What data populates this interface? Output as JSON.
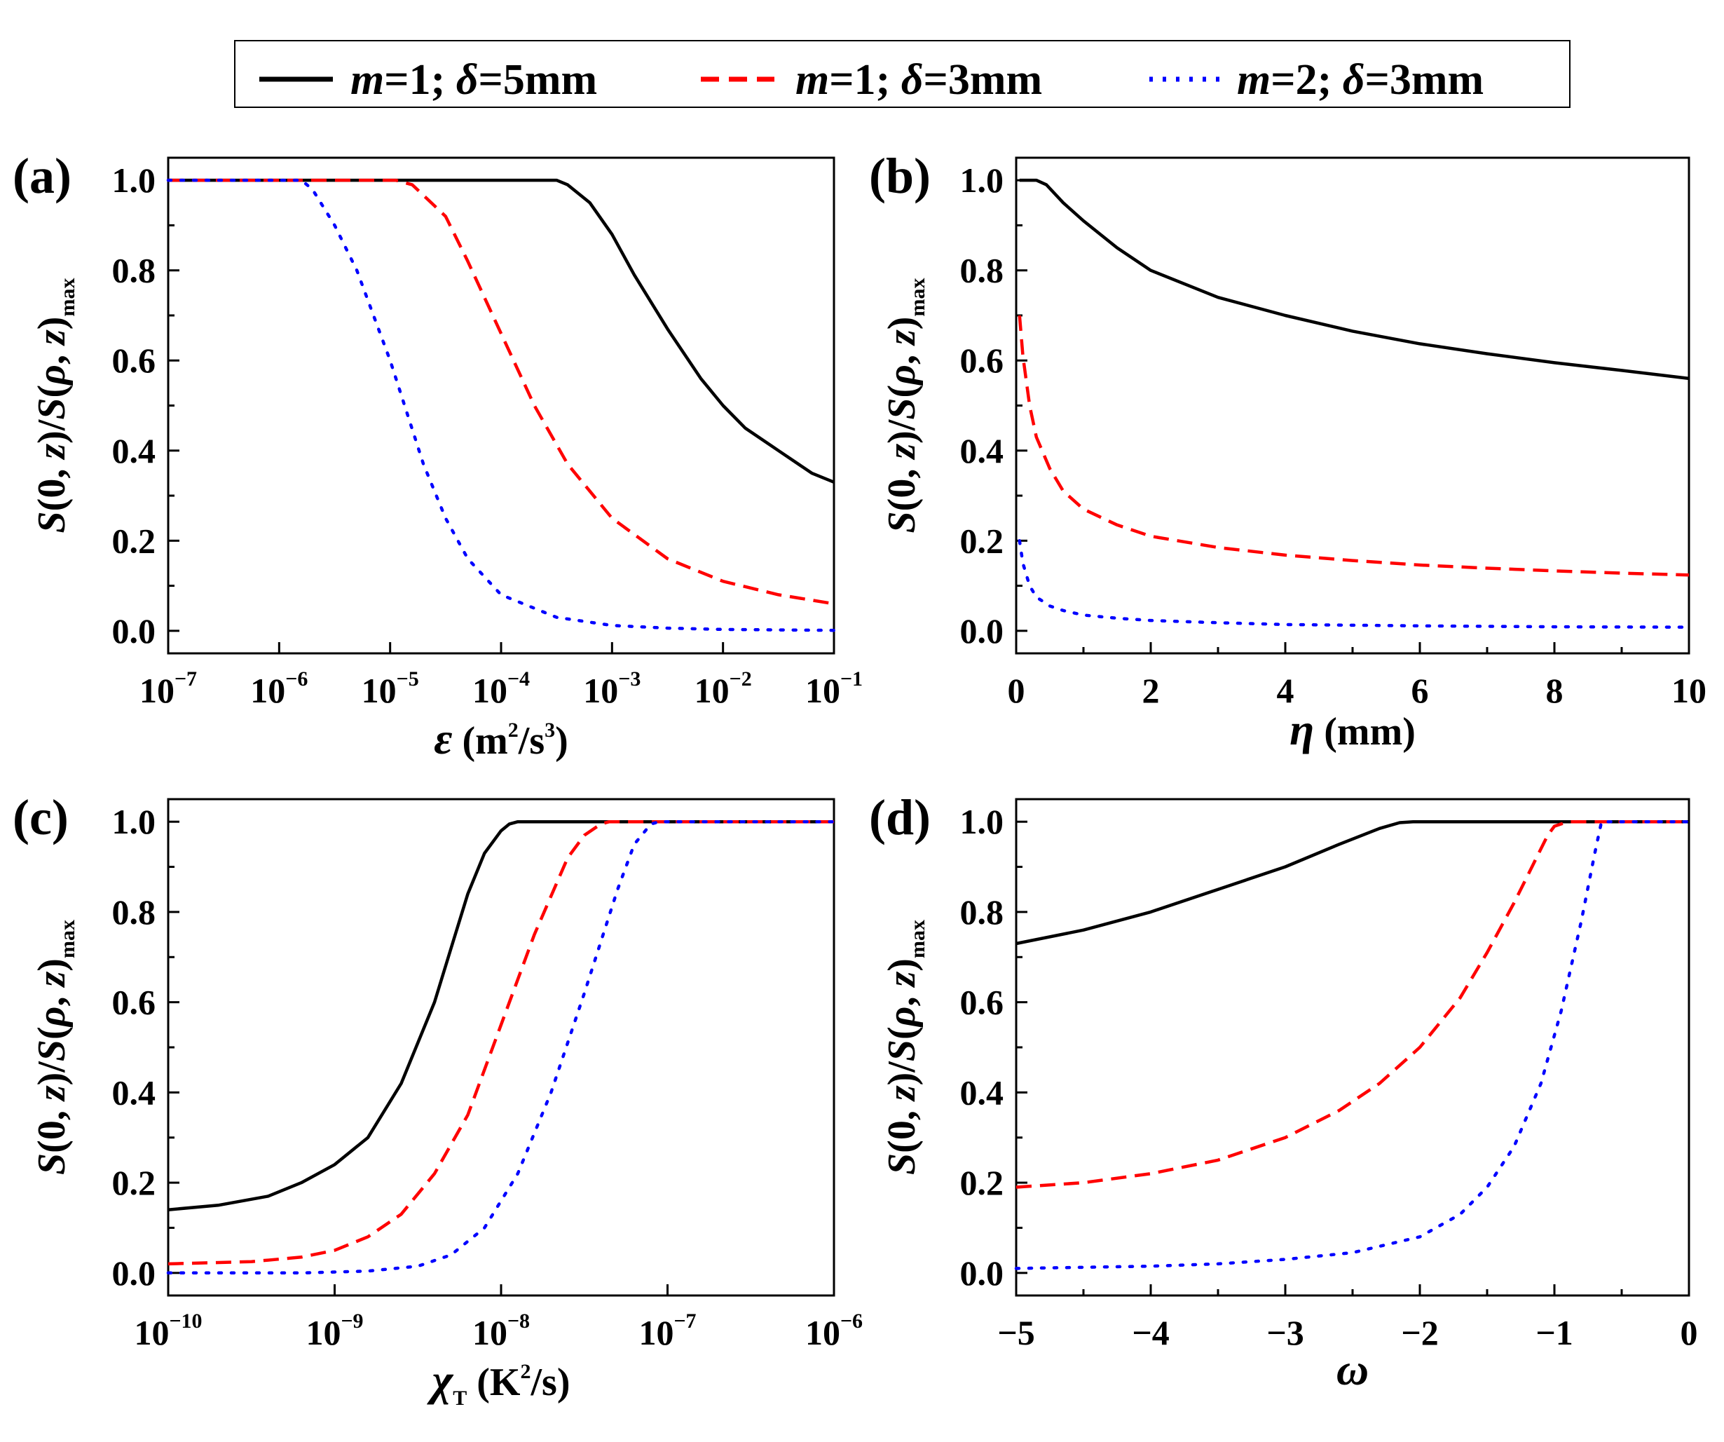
{
  "legend": [
    {
      "var1": "m",
      "val1": "=1; ",
      "var2": "δ",
      "val2": "=5mm",
      "color": "#000000",
      "dash": "solid"
    },
    {
      "var1": "m",
      "val1": "=1; ",
      "var2": "δ",
      "val2": "=3mm",
      "color": "#ff0000",
      "dash": "dashed"
    },
    {
      "var1": "m",
      "val1": "=2; ",
      "var2": "δ",
      "val2": "=3mm",
      "color": "#0000ff",
      "dash": "dotted"
    }
  ],
  "ylabel": {
    "t1": "S",
    "t2": "(0, ",
    "t3": "z",
    "t4": ")/",
    "t5": "S",
    "t6": "(",
    "t7": "ρ",
    "t8": ", ",
    "t9": "z",
    "t10": ")",
    "sub": "max"
  },
  "chart_data": [
    {
      "panel": "(a)",
      "type": "line",
      "xscale": "log",
      "xlim": [
        -7,
        -1
      ],
      "ylim": [
        -0.05,
        1.05
      ],
      "yticks": [
        "0.0",
        "0.2",
        "0.4",
        "0.6",
        "0.8",
        "1.0"
      ],
      "xticks": [
        {
          "base": "10",
          "exp": "−7"
        },
        {
          "base": "10",
          "exp": "−6"
        },
        {
          "base": "10",
          "exp": "−5"
        },
        {
          "base": "10",
          "exp": "−4"
        },
        {
          "base": "10",
          "exp": "−3"
        },
        {
          "base": "10",
          "exp": "−2"
        },
        {
          "base": "10",
          "exp": "−1"
        }
      ],
      "xlabel": {
        "sym": "ε",
        "unit": " (m",
        "sup1": "2",
        "mid": "/s",
        "sup2": "3",
        "end": ")"
      },
      "series": [
        {
          "name": "m=1; δ=5mm",
          "x": [
            -7,
            -3.5,
            -3.4,
            -3.2,
            -3,
            -2.8,
            -2.5,
            -2.2,
            -2,
            -1.8,
            -1.5,
            -1.2,
            -1
          ],
          "y": [
            1.0,
            1.0,
            0.99,
            0.95,
            0.88,
            0.79,
            0.67,
            0.56,
            0.5,
            0.45,
            0.4,
            0.35,
            0.33
          ]
        },
        {
          "name": "m=1; δ=3mm",
          "x": [
            -7,
            -4.95,
            -4.8,
            -4.5,
            -4.3,
            -4,
            -3.7,
            -3.4,
            -3,
            -2.5,
            -2,
            -1.5,
            -1
          ],
          "y": [
            1.0,
            1.0,
            0.99,
            0.92,
            0.82,
            0.66,
            0.5,
            0.37,
            0.25,
            0.16,
            0.11,
            0.08,
            0.06
          ]
        },
        {
          "name": "m=2; δ=3mm",
          "x": [
            -7,
            -5.8,
            -5.7,
            -5.5,
            -5.3,
            -5,
            -4.7,
            -4.5,
            -4.3,
            -4,
            -3.5,
            -3,
            -2.5,
            -2,
            -1
          ],
          "y": [
            1.0,
            1.0,
            0.98,
            0.9,
            0.8,
            0.6,
            0.37,
            0.25,
            0.16,
            0.08,
            0.03,
            0.012,
            0.006,
            0.003,
            0.001
          ]
        }
      ]
    },
    {
      "panel": "(b)",
      "type": "line",
      "xscale": "linear",
      "xlim": [
        0,
        10
      ],
      "ylim": [
        -0.05,
        1.05
      ],
      "yticks": [
        "0.0",
        "0.2",
        "0.4",
        "0.6",
        "0.8",
        "1.0"
      ],
      "xticks": [
        {
          "base": "0"
        },
        {
          "base": "2"
        },
        {
          "base": "4"
        },
        {
          "base": "6"
        },
        {
          "base": "8"
        },
        {
          "base": "10"
        }
      ],
      "xlabel": {
        "sym": "η",
        "unit": " (mm)"
      },
      "series": [
        {
          "name": "m=1; δ=5mm",
          "x": [
            0.05,
            0.3,
            0.45,
            0.7,
            1,
            1.5,
            2,
            3,
            4,
            5,
            6,
            7,
            8,
            9,
            10
          ],
          "y": [
            1.0,
            1.0,
            0.99,
            0.95,
            0.91,
            0.85,
            0.8,
            0.74,
            0.7,
            0.665,
            0.637,
            0.615,
            0.595,
            0.578,
            0.56
          ]
        },
        {
          "name": "m=1; δ=3mm",
          "x": [
            0.05,
            0.1,
            0.2,
            0.3,
            0.5,
            0.7,
            1,
            1.5,
            2,
            3,
            4,
            5,
            6,
            7,
            8,
            9,
            10
          ],
          "y": [
            0.7,
            0.61,
            0.5,
            0.43,
            0.36,
            0.31,
            0.27,
            0.235,
            0.21,
            0.185,
            0.168,
            0.156,
            0.146,
            0.139,
            0.133,
            0.128,
            0.124
          ]
        },
        {
          "name": "m=2; δ=3mm",
          "x": [
            0.05,
            0.1,
            0.2,
            0.3,
            0.5,
            0.7,
            1,
            1.5,
            2,
            3,
            4,
            6,
            8,
            10
          ],
          "y": [
            0.2,
            0.15,
            0.1,
            0.075,
            0.055,
            0.045,
            0.035,
            0.028,
            0.023,
            0.018,
            0.014,
            0.011,
            0.009,
            0.008
          ]
        }
      ]
    },
    {
      "panel": "(c)",
      "type": "line",
      "xscale": "log",
      "xlim": [
        -10,
        -6
      ],
      "ylim": [
        -0.05,
        1.05
      ],
      "yticks": [
        "0.0",
        "0.2",
        "0.4",
        "0.6",
        "0.8",
        "1.0"
      ],
      "xticks": [
        {
          "base": "10",
          "exp": "−10"
        },
        {
          "base": "10",
          "exp": "−9"
        },
        {
          "base": "10",
          "exp": "−8"
        },
        {
          "base": "10",
          "exp": "−7"
        },
        {
          "base": "10",
          "exp": "−6"
        }
      ],
      "xlabel": {
        "sym": "χ",
        "sub": "T",
        "unit": " (K",
        "sup1": "2",
        "mid": "/s)"
      },
      "series": [
        {
          "name": "m=1; δ=5mm",
          "x": [
            -10,
            -9.7,
            -9.4,
            -9.2,
            -9,
            -8.8,
            -8.6,
            -8.4,
            -8.3,
            -8.2,
            -8.1,
            -8,
            -7.95,
            -7.9,
            -6
          ],
          "y": [
            0.14,
            0.15,
            0.17,
            0.2,
            0.24,
            0.3,
            0.42,
            0.6,
            0.72,
            0.84,
            0.93,
            0.98,
            0.995,
            1.0,
            1.0
          ]
        },
        {
          "name": "m=1; δ=3mm",
          "x": [
            -10,
            -9.5,
            -9.2,
            -9,
            -8.8,
            -8.6,
            -8.4,
            -8.2,
            -8,
            -7.8,
            -7.6,
            -7.5,
            -7.4,
            -7.35,
            -6
          ],
          "y": [
            0.02,
            0.025,
            0.035,
            0.05,
            0.08,
            0.13,
            0.22,
            0.35,
            0.55,
            0.75,
            0.92,
            0.97,
            0.995,
            1.0,
            1.0
          ]
        },
        {
          "name": "m=2; δ=3mm",
          "x": [
            -10,
            -9.2,
            -8.8,
            -8.5,
            -8.3,
            -8.1,
            -7.9,
            -7.7,
            -7.5,
            -7.3,
            -7.2,
            -7.1,
            -7.05,
            -6
          ],
          "y": [
            0.0,
            0.0,
            0.004,
            0.015,
            0.04,
            0.1,
            0.22,
            0.4,
            0.62,
            0.85,
            0.95,
            0.995,
            1.0,
            1.0
          ]
        }
      ]
    },
    {
      "panel": "(d)",
      "type": "line",
      "xscale": "linear",
      "xlim": [
        -5,
        0
      ],
      "ylim": [
        -0.05,
        1.05
      ],
      "yticks": [
        "0.0",
        "0.2",
        "0.4",
        "0.6",
        "0.8",
        "1.0"
      ],
      "xticks": [
        {
          "base": "−5"
        },
        {
          "base": "−4"
        },
        {
          "base": "−3"
        },
        {
          "base": "−2"
        },
        {
          "base": "−1"
        },
        {
          "base": "0"
        }
      ],
      "xlabel": {
        "sym": "ω"
      },
      "series": [
        {
          "name": "m=1; δ=5mm",
          "x": [
            -5,
            -4.5,
            -4,
            -3.5,
            -3,
            -2.6,
            -2.3,
            -2.15,
            -2.05,
            0
          ],
          "y": [
            0.73,
            0.76,
            0.8,
            0.85,
            0.9,
            0.95,
            0.985,
            0.998,
            1.0,
            1.0
          ]
        },
        {
          "name": "m=1; δ=3mm",
          "x": [
            -5,
            -4.5,
            -4,
            -3.5,
            -3,
            -2.6,
            -2.3,
            -2.0,
            -1.7,
            -1.5,
            -1.3,
            -1.15,
            -1.05,
            -1.0,
            -0.9,
            0
          ],
          "y": [
            0.19,
            0.2,
            0.22,
            0.25,
            0.3,
            0.36,
            0.42,
            0.5,
            0.61,
            0.71,
            0.82,
            0.91,
            0.97,
            0.99,
            1.0,
            1.0
          ]
        },
        {
          "name": "m=2; δ=3mm",
          "x": [
            -5,
            -4,
            -3.5,
            -3,
            -2.5,
            -2,
            -1.7,
            -1.5,
            -1.3,
            -1.1,
            -0.95,
            -0.8,
            -0.7,
            -0.65,
            0
          ],
          "y": [
            0.01,
            0.015,
            0.02,
            0.03,
            0.045,
            0.08,
            0.13,
            0.19,
            0.28,
            0.42,
            0.58,
            0.78,
            0.93,
            1.0,
            1.0
          ]
        }
      ]
    }
  ]
}
